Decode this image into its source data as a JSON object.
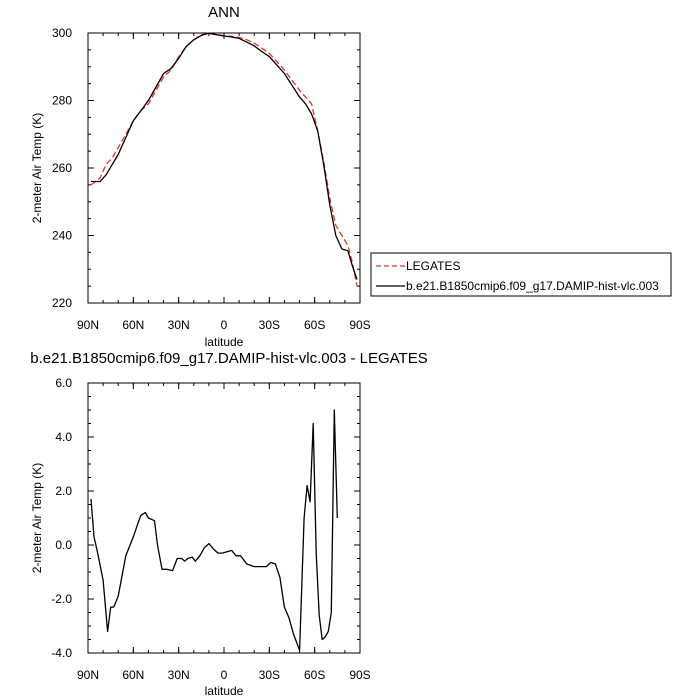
{
  "chart_data": [
    {
      "type": "line",
      "title": "ANN",
      "xlabel": "latitude",
      "ylabel": "2-meter Air Temp (K)",
      "xlim": [
        90,
        -90
      ],
      "ylim": [
        220,
        300
      ],
      "x_ticks": [
        90,
        60,
        30,
        0,
        -30,
        -60,
        -90
      ],
      "x_tick_labels": [
        "90N",
        "60N",
        "30N",
        "0",
        "30S",
        "60S",
        "90S"
      ],
      "y_ticks": [
        220,
        240,
        260,
        280,
        300
      ],
      "y_tick_labels": [
        "220",
        "240",
        "260",
        "280",
        "300"
      ],
      "legend": {
        "placement": "right"
      },
      "series": [
        {
          "name": "LEGATES",
          "color": "#e8302a",
          "dash": true,
          "x": [
            88,
            85,
            82,
            78,
            74,
            70,
            65,
            60,
            55,
            50,
            45,
            40,
            35,
            30,
            25,
            20,
            15,
            10,
            5,
            0,
            -5,
            -10,
            -15,
            -20,
            -25,
            -30,
            -35,
            -40,
            -45,
            -50,
            -54,
            -58,
            -62,
            -66,
            -70,
            -74,
            -78,
            -82,
            -85,
            -88
          ],
          "y": [
            255,
            256,
            257,
            261,
            263,
            266,
            270,
            274,
            277,
            279,
            283,
            287,
            289,
            293,
            296,
            298,
            299.5,
            300,
            299.5,
            299.2,
            299,
            298.7,
            298,
            297,
            295.5,
            294,
            291.5,
            289,
            286,
            283,
            281,
            279,
            271,
            262,
            251,
            243,
            240,
            237,
            232,
            225
          ]
        },
        {
          "name": "b.e21.B1850cmip6.f09_g17.DAMIP-hist-vlc.003",
          "color": "#000000",
          "dash": false,
          "x": [
            88,
            85,
            82,
            78,
            74,
            70,
            65,
            60,
            55,
            50,
            45,
            40,
            35,
            30,
            25,
            20,
            15,
            10,
            5,
            0,
            -5,
            -10,
            -15,
            -20,
            -25,
            -30,
            -35,
            -40,
            -45,
            -50,
            -54,
            -58,
            -62,
            -66,
            -70,
            -74,
            -78,
            -82,
            -85,
            -88
          ],
          "y": [
            256,
            256,
            256,
            258,
            261,
            264,
            269,
            274,
            277,
            280,
            284,
            288,
            289.5,
            292.5,
            296,
            298,
            299.3,
            299.9,
            299.5,
            299.1,
            298.8,
            298.4,
            297.3,
            296.2,
            294.5,
            293,
            290.5,
            288,
            284.5,
            281,
            279,
            276,
            271,
            261,
            249,
            240,
            236,
            235.5,
            231,
            227
          ]
        }
      ]
    },
    {
      "type": "line",
      "title": "b.e21.B1850cmip6.f09_g17.DAMIP-hist-vlc.003 - LEGATES",
      "xlabel": "latitude",
      "ylabel": "2-meter Air Temp (K)",
      "xlim": [
        90,
        -90
      ],
      "ylim": [
        -4.0,
        6.0
      ],
      "x_ticks": [
        90,
        60,
        30,
        0,
        -30,
        -60,
        -90
      ],
      "x_tick_labels": [
        "90N",
        "60N",
        "30N",
        "0",
        "30S",
        "60S",
        "90S"
      ],
      "y_ticks": [
        -4.0,
        -2.0,
        0.0,
        2.0,
        4.0,
        6.0
      ],
      "y_tick_labels": [
        "-4.0",
        "-2.0",
        "0.0",
        "2.0",
        "4.0",
        "6.0"
      ],
      "series": [
        {
          "color": "#000000",
          "dash": false,
          "x": [
            88,
            86,
            84,
            80,
            77,
            75,
            73,
            70,
            65,
            60,
            57,
            55,
            52,
            50,
            46,
            44,
            41,
            38,
            34,
            31,
            28,
            26,
            24,
            21,
            19,
            16,
            13,
            10,
            7,
            4,
            1,
            -2,
            -5,
            -8,
            -11,
            -15,
            -20,
            -24,
            -28,
            -31,
            -34,
            -37,
            -40,
            -43,
            -46,
            -50,
            -53,
            -55,
            -57,
            -59,
            -61,
            -63,
            -65,
            -67,
            -69,
            -71,
            -73,
            -75,
            -77,
            -79,
            -81,
            -83,
            -85,
            -87
          ],
          "y": [
            1.7,
            0.3,
            -0.2,
            -1.3,
            -3.2,
            -2.3,
            -2.3,
            -1.9,
            -0.4,
            0.3,
            0.8,
            1.1,
            1.2,
            1.0,
            0.9,
            0.0,
            -0.9,
            -0.9,
            -0.95,
            -0.5,
            -0.5,
            -0.6,
            -0.5,
            -0.45,
            -0.6,
            -0.4,
            -0.1,
            0.05,
            -0.15,
            -0.3,
            -0.3,
            -0.25,
            -0.2,
            -0.4,
            -0.4,
            -0.7,
            -0.8,
            -0.8,
            -0.8,
            -0.65,
            -0.7,
            -1.2,
            -2.3,
            -2.7,
            -3.3,
            -3.9,
            1.0,
            2.2,
            1.6,
            4.5,
            -0.3,
            -2.6,
            -3.5,
            -3.4,
            -3.2,
            -2.5,
            5.0,
            1.0,
            null,
            null,
            null,
            null,
            null,
            null
          ]
        }
      ]
    }
  ],
  "legend": {
    "items": [
      {
        "label": "LEGATES",
        "color": "#e8302a",
        "dash": true
      },
      {
        "label": "b.e21.B1850cmip6.f09_g17.DAMIP-hist-vlc.003",
        "color": "#000000",
        "dash": false
      }
    ]
  }
}
